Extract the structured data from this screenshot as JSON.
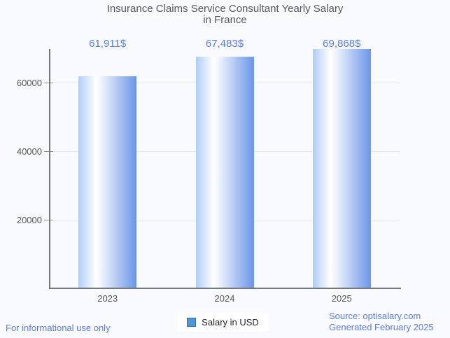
{
  "title": {
    "line1": "Insurance Claims Service Consultant Yearly Salary",
    "line2": "in France"
  },
  "chart_data": {
    "type": "bar",
    "title": "Insurance Claims Service Consultant Yearly Salary in France",
    "categories": [
      "2023",
      "2024",
      "2025"
    ],
    "series": [
      {
        "name": "Salary in USD",
        "values": [
          61911,
          67483,
          69868
        ]
      }
    ],
    "value_labels": [
      "61,911$",
      "67,483$",
      "69,868$"
    ],
    "xlabel": "",
    "ylabel": "",
    "yticks": [
      20000,
      40000,
      60000
    ],
    "ytick_labels": [
      "20000",
      "40000",
      "60000"
    ],
    "ylim": [
      0,
      70000
    ],
    "grid": true,
    "legend_position": "bottom",
    "bar_gradient": [
      "#aecdf7",
      "#ffffff",
      "#6b95e9"
    ],
    "value_label_color": "#5b7de2",
    "axis_color": "#75787c",
    "gridline_color": "#e4e7ec"
  },
  "legend": {
    "label": "Salary in USD",
    "swatch_fill": "#4f97db",
    "swatch_border": "#3470b4"
  },
  "footer": {
    "left": "For informational use only",
    "source": "Source: optisalary.com",
    "generated": "Generated February 2025"
  },
  "colors": {
    "background": "#f9fafd",
    "title": "#57585a",
    "footer_text": "#5a7ce1",
    "tick_label": "#53565a"
  }
}
